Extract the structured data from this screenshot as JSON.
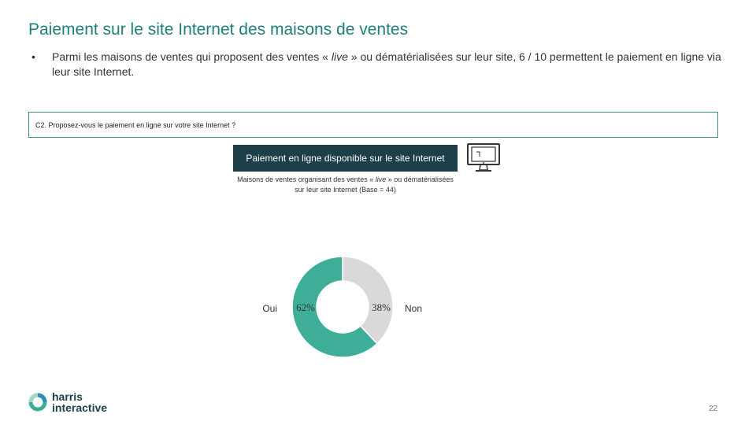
{
  "header": {
    "title": "Paiement sur le site Internet des maisons de ventes"
  },
  "bullet": {
    "marker": "•",
    "text_1": "Parmi les maisons de ventes qui proposent des ventes « ",
    "text_italic": "live",
    "text_2": " » ou dématérialisées sur leur site, 6 / 10 permettent le paiement en ligne via leur site Internet."
  },
  "question": {
    "text": "C2. Proposez-vous le paiement en ligne sur votre site Internet ?"
  },
  "banner": {
    "label": "Paiement en ligne disponible sur le site Internet"
  },
  "base": {
    "text_1": "Maisons de ventes organisant des ventes « ",
    "text_italic": "live",
    "text_2": " » ou dématérialisées sur leur site Internet (Base = 44)"
  },
  "chart_data": {
    "type": "pie",
    "style": "donut",
    "slices": [
      {
        "label": "Oui",
        "value": 62,
        "value_label": "62%",
        "color": "#3fae99"
      },
      {
        "label": "Non",
        "value": 38,
        "value_label": "38%",
        "color": "#d9d9d9"
      }
    ],
    "legend_placement": "labels beside donut"
  },
  "footer": {
    "logo_line_1": "harris",
    "logo_line_2": "interactive",
    "page_number": "22"
  },
  "colors": {
    "accent": "#1f7f78",
    "banner": "#1c3f4a",
    "teal": "#3fae99",
    "grey": "#d9d9d9"
  }
}
